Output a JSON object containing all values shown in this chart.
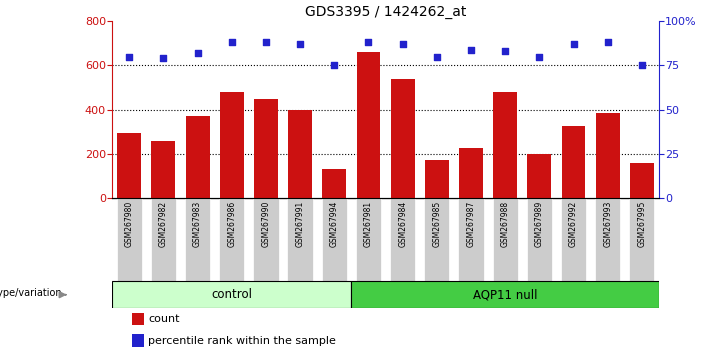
{
  "title": "GDS3395 / 1424262_at",
  "categories": [
    "GSM267980",
    "GSM267982",
    "GSM267983",
    "GSM267986",
    "GSM267990",
    "GSM267991",
    "GSM267994",
    "GSM267981",
    "GSM267984",
    "GSM267985",
    "GSM267987",
    "GSM267988",
    "GSM267989",
    "GSM267992",
    "GSM267993",
    "GSM267995"
  ],
  "counts": [
    295,
    258,
    370,
    480,
    450,
    400,
    130,
    660,
    540,
    175,
    228,
    480,
    200,
    325,
    385,
    158
  ],
  "percentile_ranks": [
    80,
    79,
    82,
    88,
    88,
    87,
    75,
    88,
    87,
    80,
    84,
    83,
    80,
    87,
    88,
    75
  ],
  "bar_color": "#cc1111",
  "dot_color": "#2222cc",
  "control_label": "control",
  "aqp_label": "AQP11 null",
  "control_count": 7,
  "ylim_left": [
    0,
    800
  ],
  "ylim_right": [
    0,
    100
  ],
  "yticks_left": [
    0,
    200,
    400,
    600,
    800
  ],
  "yticks_right": [
    0,
    25,
    50,
    75,
    100
  ],
  "control_bg": "#ccffcc",
  "aqp_bg": "#44cc44",
  "xticklabel_bg": "#cccccc",
  "legend_count_label": "count",
  "legend_pct_label": "percentile rank within the sample",
  "genotype_label": "genotype/variation",
  "bar_width": 0.7
}
